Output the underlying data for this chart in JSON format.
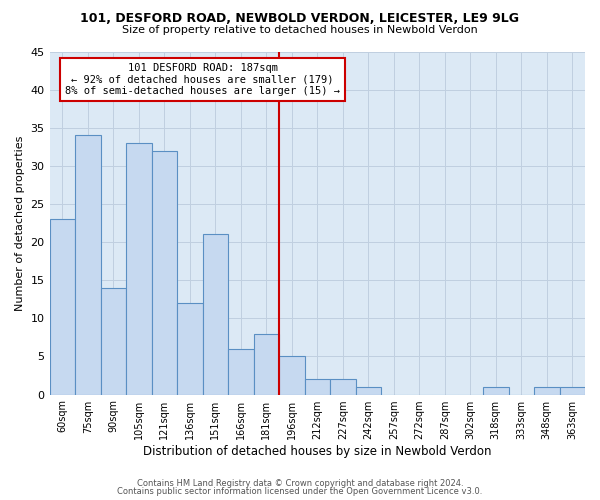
{
  "title1": "101, DESFORD ROAD, NEWBOLD VERDON, LEICESTER, LE9 9LG",
  "title2": "Size of property relative to detached houses in Newbold Verdon",
  "xlabel": "Distribution of detached houses by size in Newbold Verdon",
  "ylabel": "Number of detached properties",
  "bin_labels": [
    "60sqm",
    "75sqm",
    "90sqm",
    "105sqm",
    "121sqm",
    "136sqm",
    "151sqm",
    "166sqm",
    "181sqm",
    "196sqm",
    "212sqm",
    "227sqm",
    "242sqm",
    "257sqm",
    "272sqm",
    "287sqm",
    "302sqm",
    "318sqm",
    "333sqm",
    "348sqm",
    "363sqm"
  ],
  "bar_values": [
    23,
    34,
    14,
    33,
    32,
    12,
    21,
    6,
    8,
    5,
    2,
    2,
    1,
    0,
    0,
    0,
    0,
    1,
    0,
    1,
    1
  ],
  "bar_color": "#c6d9f0",
  "bar_edge_color": "#5a8fc3",
  "vline_x": 8.5,
  "vline_color": "#cc0000",
  "annotation_title": "101 DESFORD ROAD: 187sqm",
  "annotation_line1": "← 92% of detached houses are smaller (179)",
  "annotation_line2": "8% of semi-detached houses are larger (15) →",
  "annotation_box_color": "#ffffff",
  "annotation_box_edge_color": "#cc0000",
  "ylim": [
    0,
    45
  ],
  "yticks": [
    0,
    5,
    10,
    15,
    20,
    25,
    30,
    35,
    40,
    45
  ],
  "footer1": "Contains HM Land Registry data © Crown copyright and database right 2024.",
  "footer2": "Contains public sector information licensed under the Open Government Licence v3.0.",
  "background_color": "#ffffff",
  "ax_background_color": "#dce9f5",
  "grid_color": "#c0cfe0"
}
